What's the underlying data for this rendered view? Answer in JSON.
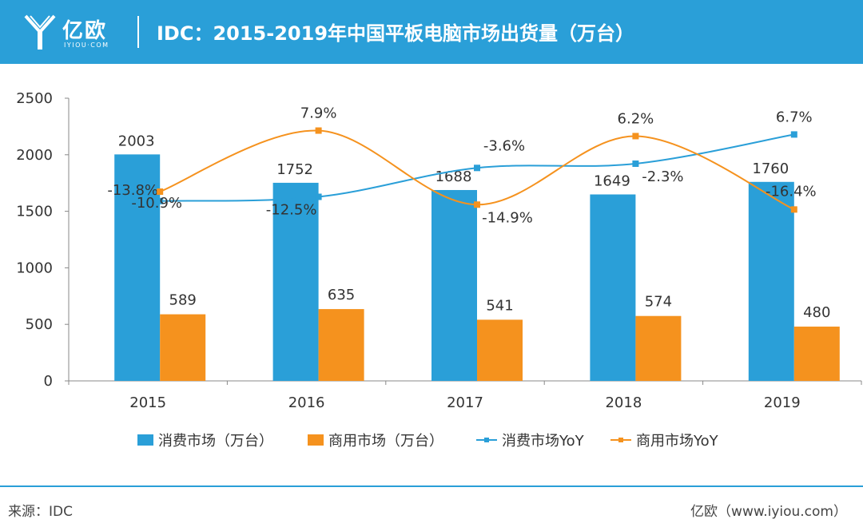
{
  "header": {
    "logo_text": "亿欧",
    "logo_sub": "IYIOU·COM",
    "title": "IDC：2015-2019年中国平板电脑市场出货量（万台）"
  },
  "colors": {
    "header_bg": "#2A9FD8",
    "consumer": "#2A9FD8",
    "commercial": "#F5921E"
  },
  "chart_data": {
    "type": "bar",
    "title": "IDC：2015-2019年中国平板电脑市场出货量（万台）",
    "categories": [
      "2015",
      "2016",
      "2017",
      "2018",
      "2019"
    ],
    "ylim": [
      0,
      2500
    ],
    "yticks": [
      0,
      500,
      1000,
      1500,
      2000,
      2500
    ],
    "series": [
      {
        "name": "消费市场（万台）",
        "type": "bar",
        "values": [
          2003,
          1752,
          1688,
          1649,
          1760
        ]
      },
      {
        "name": "商用市场（万台）",
        "type": "bar",
        "values": [
          589,
          635,
          541,
          574,
          480
        ]
      },
      {
        "name": "消费市场YoY",
        "type": "line",
        "values": [
          "-13.8%",
          "-12.5%",
          "-3.6%",
          "-2.3%",
          "6.7%"
        ]
      },
      {
        "name": "商用市场YoY",
        "type": "line",
        "values": [
          "-10.9%",
          "7.9%",
          "-14.9%",
          "6.2%",
          "-16.4%"
        ]
      }
    ]
  },
  "legend": [
    {
      "label": "消费市场（万台）"
    },
    {
      "label": "商用市场（万台）"
    },
    {
      "label": "消费市场YoY"
    },
    {
      "label": "商用市场YoY"
    }
  ],
  "footer": {
    "source": "来源：IDC",
    "site": "亿欧（www.iyiou.com）"
  }
}
